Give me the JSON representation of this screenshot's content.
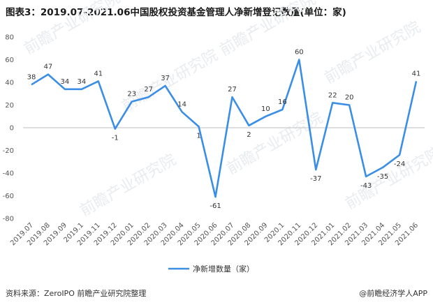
{
  "title": "图表3：2019.07-2021.06中国股权投资基金管理人净新增登记数量(单位：家)",
  "footer": {
    "source": "资料来源：ZeroIPO 前瞻产业研究院整理",
    "brand": "@前瞻经济学人APP"
  },
  "watermark": "前瞻产业研究院",
  "chart_data": {
    "type": "line",
    "title": "图表3：2019.07-2021.06中国股权投资基金管理人净新增登记数量(单位：家)",
    "xlabel": "",
    "ylabel": "",
    "ylim": [
      -80,
      80
    ],
    "yticks": [
      80,
      60,
      40,
      20,
      0,
      -20,
      -40,
      -60,
      -80
    ],
    "grid": false,
    "legend_position": "bottom",
    "categories": [
      "2019.07",
      "2019.08",
      "2019.09",
      "2019.1",
      "2019.11",
      "2019.12",
      "2020.01",
      "2020.02",
      "2020.03",
      "2020.04",
      "2020.05",
      "2020.06",
      "2020.07",
      "2020.08",
      "2020.09",
      "2020.1",
      "2020.11",
      "2020.12",
      "2021.01",
      "2021.02",
      "2021.03",
      "2021.04",
      "2021.05",
      "2021.06"
    ],
    "series": [
      {
        "name": "净新增数量（家）",
        "color": "#3a8ee6",
        "values": [
          38,
          47,
          34,
          34,
          41,
          -1,
          23,
          27,
          37,
          14,
          1,
          -61,
          27,
          2,
          10,
          16,
          60,
          -37,
          22,
          20,
          -43,
          -35,
          -24,
          41
        ]
      }
    ]
  }
}
